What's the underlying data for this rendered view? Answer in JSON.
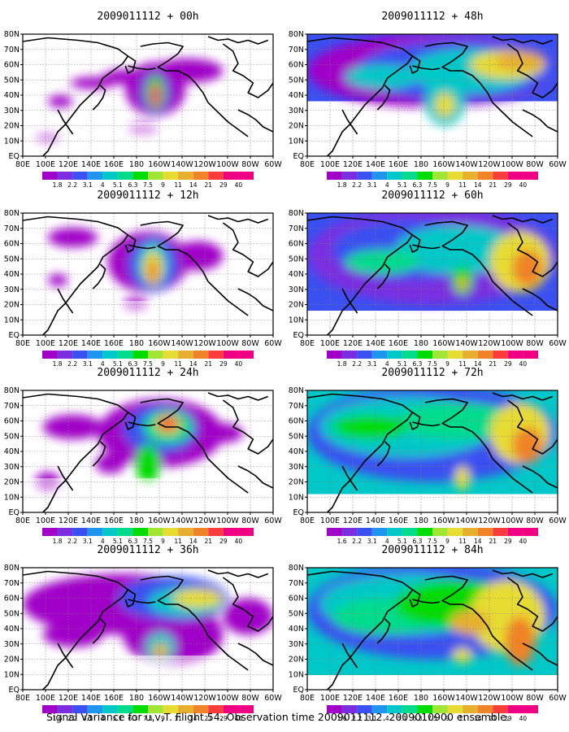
{
  "figure": {
    "caption": "Signal Variance for u,v,T. Flight 54. Observation time 2009011112. 2009010900 ensemble."
  },
  "colors": {
    "legend": [
      "#a000c8",
      "#7a2ee0",
      "#3a50f0",
      "#1e96f0",
      "#00c8c8",
      "#00dc8c",
      "#00dc00",
      "#a0e632",
      "#e6dc32",
      "#e6af2d",
      "#f08228",
      "#fa3c3c",
      "#f00082"
    ],
    "land": "#ffffff",
    "coast": "#000000",
    "grid": "#808080"
  },
  "chart_data": [
    {
      "type": "heatmap",
      "title": "2009011112 + 00h",
      "x_ticks": [
        "80E",
        "100E",
        "120E",
        "140E",
        "160E",
        "180",
        "160W",
        "140W",
        "120W",
        "100W",
        "80W",
        "60W"
      ],
      "y_ticks": [
        "EQ",
        "10N",
        "20N",
        "30N",
        "40N",
        "50N",
        "60N",
        "70N",
        "80N"
      ],
      "legend_labels": [
        "1.8",
        "2.2",
        "3.1",
        "4",
        "5.1",
        "6.3",
        "7.5",
        "9",
        "11",
        "14",
        "21",
        "29",
        "40"
      ]
    },
    {
      "type": "heatmap",
      "title": "2009011112 + 12h",
      "x_ticks": [
        "80E",
        "100E",
        "120E",
        "140E",
        "160E",
        "180",
        "160W",
        "140W",
        "120W",
        "100W",
        "80W",
        "60W"
      ],
      "y_ticks": [
        "EQ",
        "10N",
        "20N",
        "30N",
        "40N",
        "50N",
        "60N",
        "70N",
        "80N"
      ],
      "legend_labels": [
        "1.8",
        "2.2",
        "3.1",
        "4",
        "5.1",
        "6.3",
        "7.5",
        "9",
        "11",
        "14",
        "21",
        "29",
        "40"
      ]
    },
    {
      "type": "heatmap",
      "title": "2009011112 + 24h",
      "x_ticks": [
        "80E",
        "100E",
        "120E",
        "140E",
        "160E",
        "180",
        "160W",
        "140W",
        "120W",
        "100W",
        "80W",
        "60W"
      ],
      "y_ticks": [
        "EQ",
        "10N",
        "20N",
        "30N",
        "40N",
        "50N",
        "60N",
        "70N",
        "80N"
      ],
      "legend_labels": [
        "1.8",
        "2.2",
        "3.1",
        "4",
        "5.1",
        "6.3",
        "7.5",
        "9",
        "11",
        "14",
        "21",
        "29",
        "40"
      ]
    },
    {
      "type": "heatmap",
      "title": "2009011112 + 36h",
      "x_ticks": [
        "80E",
        "100E",
        "120E",
        "140E",
        "160E",
        "180",
        "160W",
        "140W",
        "120W",
        "100W",
        "80W",
        "60W"
      ],
      "y_ticks": [
        "EQ",
        "10N",
        "20N",
        "30N",
        "40N",
        "50N",
        "60N",
        "70N",
        "80N"
      ],
      "legend_labels": [
        "1.6",
        "2.2",
        "3.1",
        "4",
        "5.1",
        "6.3",
        "7.5",
        "9",
        "11",
        "14",
        "21",
        "29",
        "40"
      ]
    },
    {
      "type": "heatmap",
      "title": "2009011112 + 48h",
      "x_ticks": [
        "80E",
        "100E",
        "120E",
        "140E",
        "160E",
        "180",
        "160W",
        "140W",
        "120W",
        "100W",
        "80W",
        "60W"
      ],
      "y_ticks": [
        "EQ",
        "10N",
        "20N",
        "30N",
        "40N",
        "50N",
        "60N",
        "70N",
        "80N"
      ],
      "legend_labels": [
        "1.8",
        "2.2",
        "3.1",
        "4",
        "5.1",
        "6.3",
        "7.5",
        "9",
        "11",
        "14",
        "21",
        "29",
        "40"
      ]
    },
    {
      "type": "heatmap",
      "title": "2009011112 + 60h",
      "x_ticks": [
        "80E",
        "100E",
        "120E",
        "140E",
        "160E",
        "180",
        "160W",
        "140W",
        "120W",
        "100W",
        "80W",
        "60W"
      ],
      "y_ticks": [
        "EQ",
        "10N",
        "20N",
        "30N",
        "40N",
        "50N",
        "60N",
        "70N",
        "80N"
      ],
      "legend_labels": [
        "1.8",
        "2.2",
        "3.1",
        "4",
        "5.1",
        "6.3",
        "7.5",
        "9",
        "11",
        "14",
        "21",
        "29",
        "40"
      ]
    },
    {
      "type": "heatmap",
      "title": "2009011112 + 72h",
      "x_ticks": [
        "80E",
        "100E",
        "120E",
        "140E",
        "160E",
        "180",
        "160W",
        "140W",
        "120W",
        "100W",
        "80W",
        "60W"
      ],
      "y_ticks": [
        "EQ",
        "10N",
        "20N",
        "30N",
        "40N",
        "50N",
        "60N",
        "70N",
        "80N"
      ],
      "legend_labels": [
        "1.6",
        "2.2",
        "3.1",
        "4",
        "5.1",
        "6.3",
        "7.5",
        "9",
        "11",
        "14",
        "21",
        "29",
        "40"
      ]
    },
    {
      "type": "heatmap",
      "title": "2009011112 + 84h",
      "x_ticks": [
        "80E",
        "100E",
        "120E",
        "140E",
        "160E",
        "180",
        "160W",
        "140W",
        "120W",
        "100W",
        "80W",
        "60W"
      ],
      "y_ticks": [
        "EQ",
        "10N",
        "20N",
        "30N",
        "40N",
        "50N",
        "60N",
        "70N",
        "80N"
      ],
      "legend_labels": [
        "1.6",
        "2.2",
        "3.1",
        "4",
        "5.1",
        "6.3",
        "7.5",
        "9",
        "11",
        "14",
        "21",
        "29",
        "40"
      ]
    }
  ]
}
